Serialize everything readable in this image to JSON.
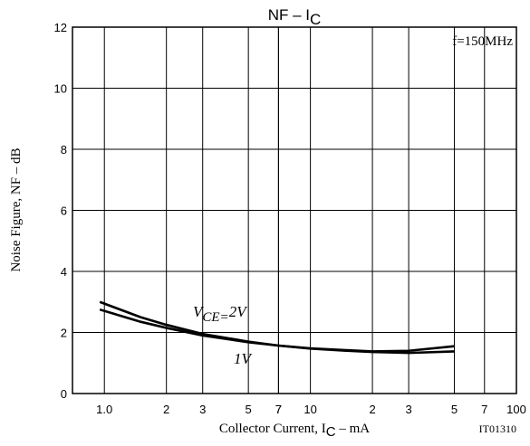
{
  "chart_data": {
    "type": "line",
    "title": [
      "NF  –  I",
      "C"
    ],
    "x_label": [
      "Collector Current, I",
      "C",
      " –  mA"
    ],
    "y_label": "Noise Figure, NF  –  dB",
    "annotations": [
      "f=150MHz",
      "IT01310",
      "V",
      "CE="
    ],
    "log_x": true,
    "grid": true,
    "xlim": [
      0.7,
      100
    ],
    "xticks": [
      7,
      {
        "value": 1,
        "label": "1.0"
      },
      2,
      3,
      5,
      7,
      10,
      {
        "value": 20,
        "label": "2"
      },
      {
        "value": 30,
        "label": "3"
      },
      {
        "value": 50,
        "label": "5"
      },
      {
        "value": 70,
        "label": "7"
      },
      100
    ],
    "ylim": [
      0,
      12
    ],
    "yticks": [
      0,
      2,
      4,
      6,
      8,
      10,
      12
    ],
    "x": [
      0.95,
      1.5,
      2,
      3,
      5,
      7,
      10,
      15,
      20,
      30,
      50
    ],
    "series": [
      {
        "name": "2V",
        "color": "#000000",
        "values": [
          2.75,
          2.35,
          2.15,
          1.9,
          1.68,
          1.57,
          1.48,
          1.42,
          1.38,
          1.4,
          1.55
        ]
      },
      {
        "name": "1V",
        "color": "#000000",
        "values": [
          3.0,
          2.5,
          2.25,
          1.95,
          1.7,
          1.57,
          1.47,
          1.4,
          1.36,
          1.33,
          1.38
        ]
      }
    ]
  }
}
